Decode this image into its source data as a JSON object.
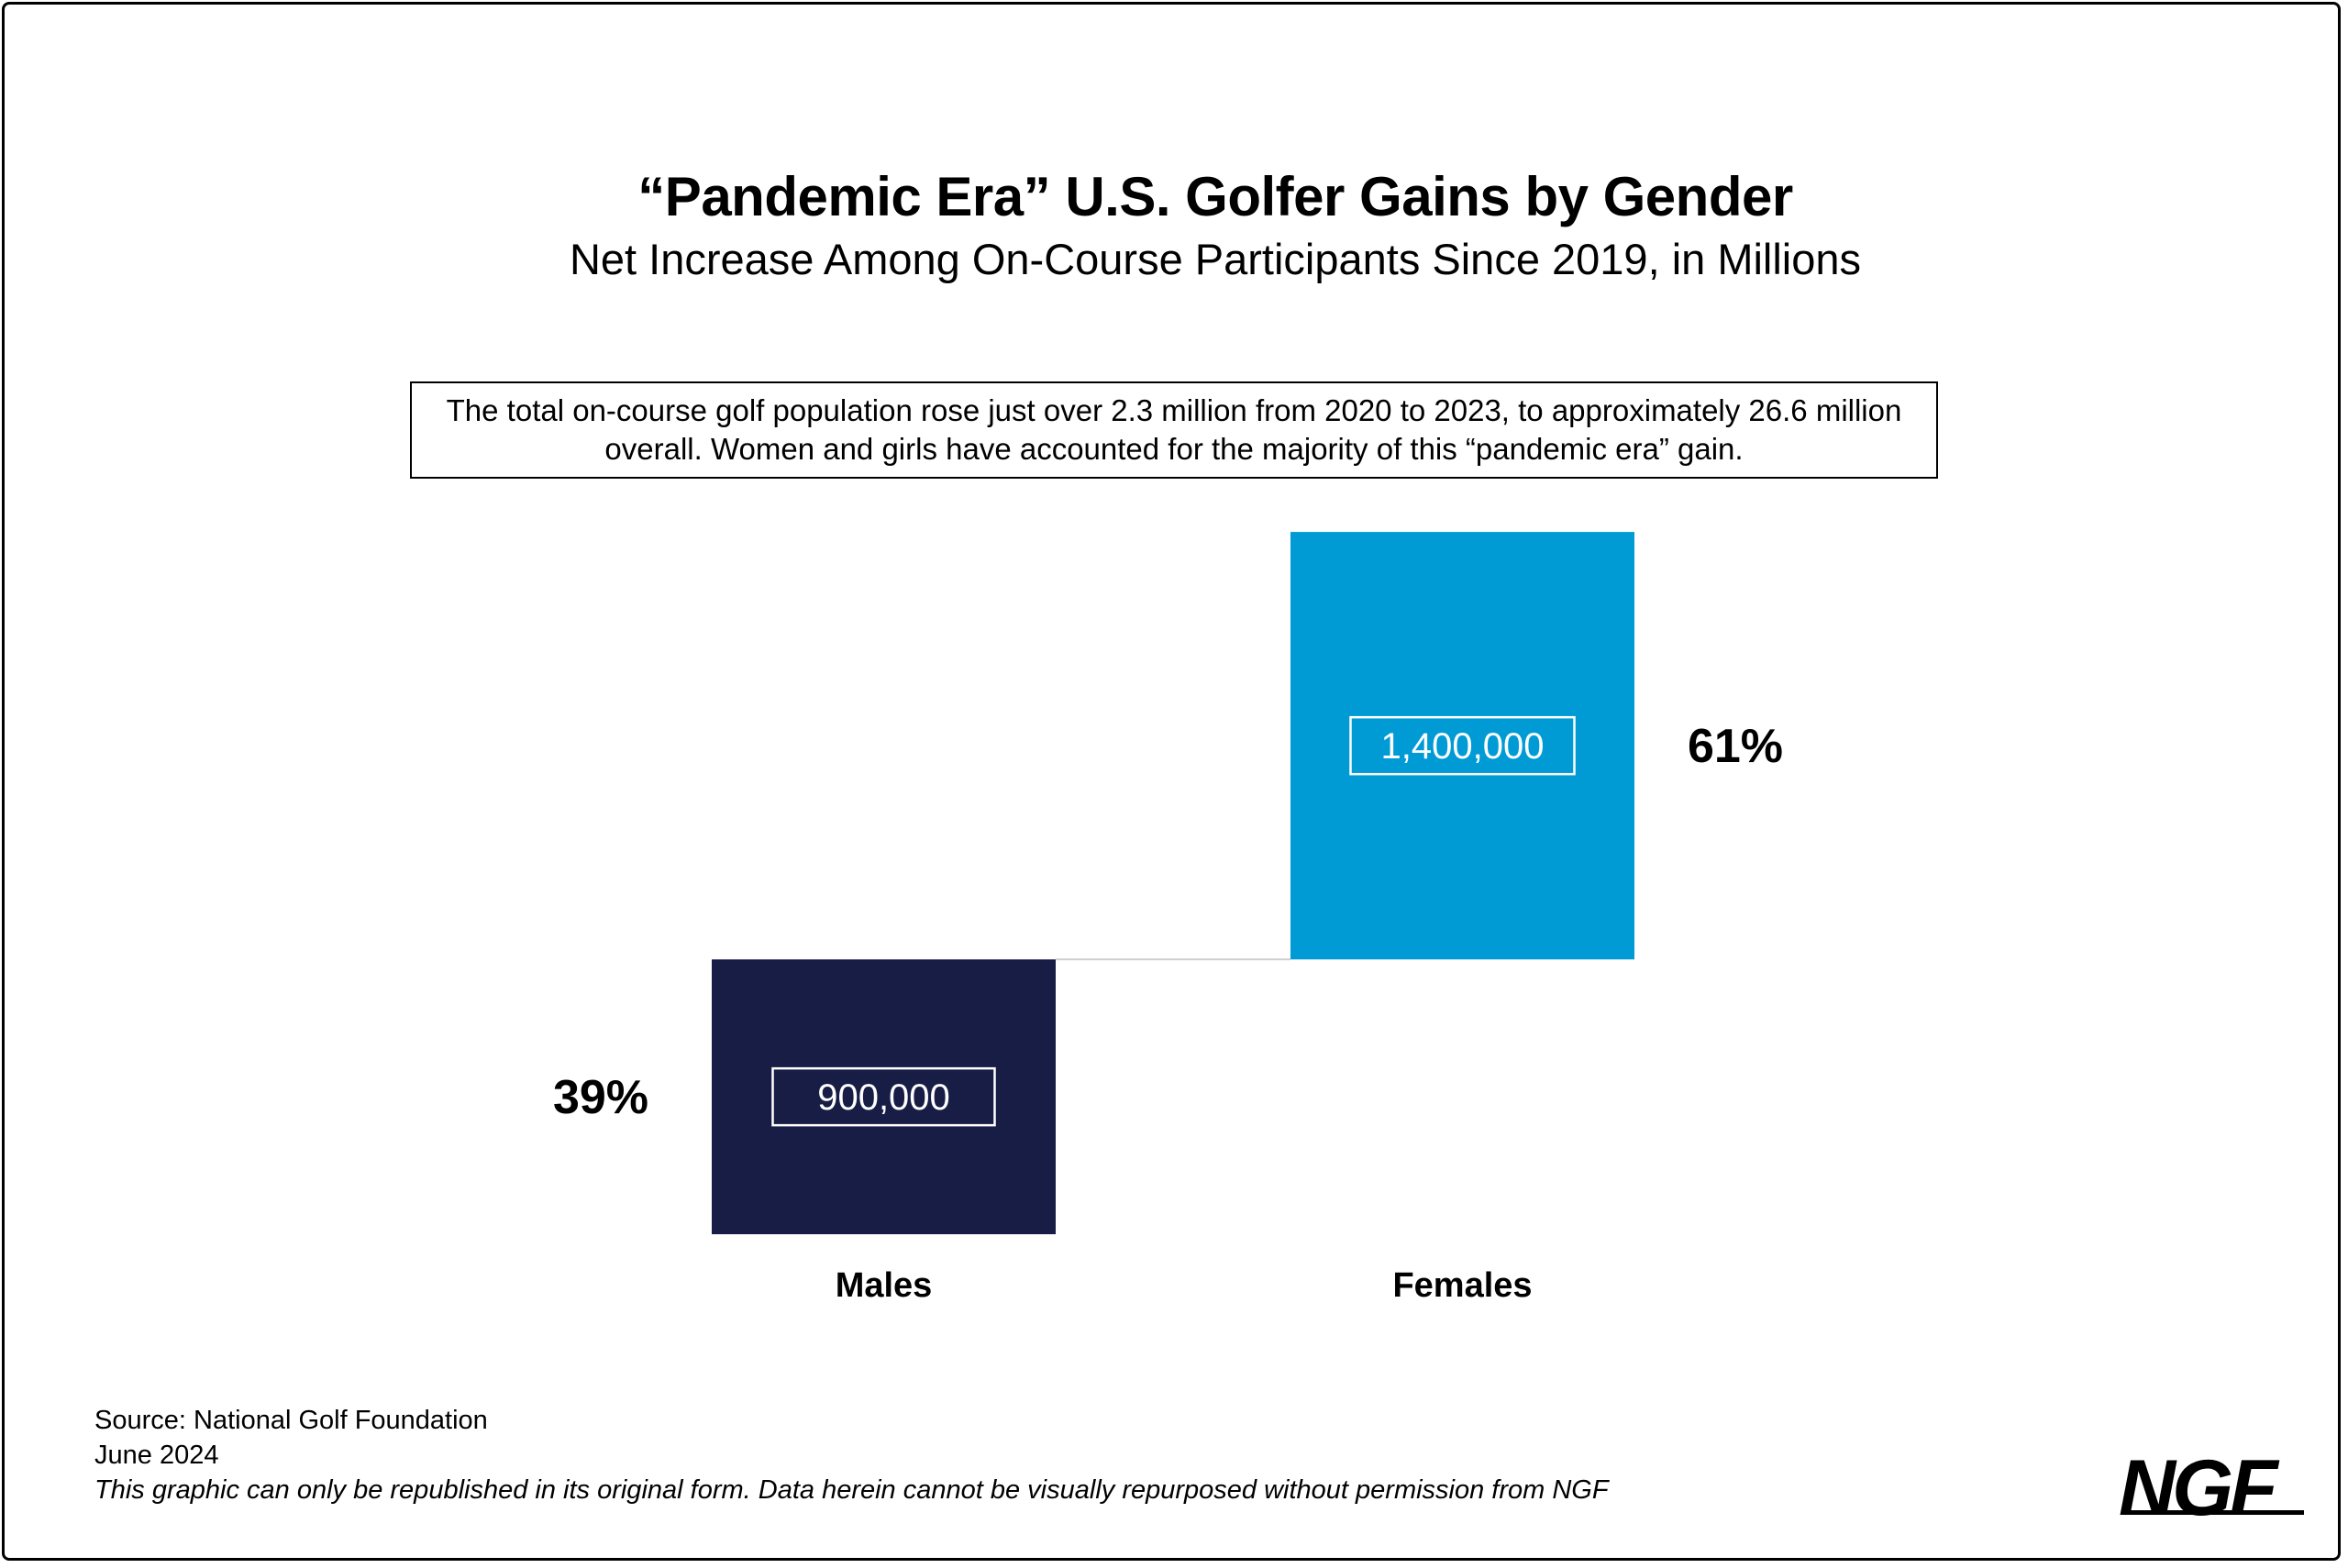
{
  "title": "“Pandemic Era” U.S. Golfer Gains by Gender",
  "subtitle": "Net Increase Among On-Course Participants Since 2019, in Millions",
  "note": "The total on-course golf population rose just over 2.3 million from 2020 to 2023, to approximately 26.6 million overall. Women and girls have accounted for the majority of this “pandemic era” gain.",
  "chart_data": {
    "type": "bar",
    "subtype": "waterfall",
    "categories": [
      "Males",
      "Females"
    ],
    "values": [
      900000,
      1400000
    ],
    "value_labels": [
      "900,000",
      "1,400,000"
    ],
    "percent_labels": [
      "39%",
      "61%"
    ],
    "colors": [
      "#181d46",
      "#009bd5"
    ],
    "title": "“Pandemic Era” U.S. Golfer Gains by Gender",
    "subtitle": "Net Increase Among On-Course Participants Since 2019, in Millions",
    "grid": false,
    "legend": "none"
  },
  "footer": {
    "source": "Source: National Golf Foundation",
    "date": "June 2024",
    "disclaimer": "This graphic can only be republished in its original form. Data herein cannot be visually repurposed without permission from NGF"
  },
  "logo": "NGF"
}
